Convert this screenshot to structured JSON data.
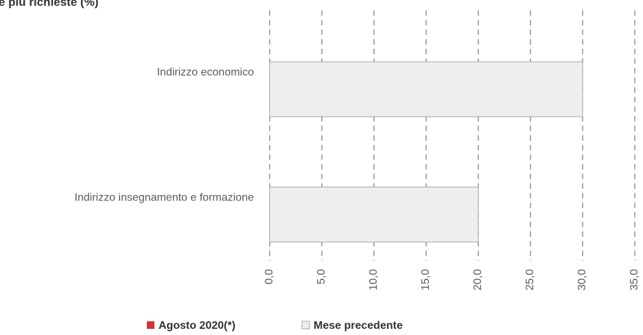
{
  "chart_data": {
    "type": "hbar",
    "title": "e più richieste (%)",
    "categories": [
      "Indirizzo economico",
      "Indirizzo insegnamento e formazione"
    ],
    "series": [
      {
        "name": "Agosto 2020(*)",
        "color": "#d13438",
        "values": [
          0,
          0
        ]
      },
      {
        "name": "Mese precedente",
        "color": "#eeeeee",
        "values": [
          30,
          20
        ]
      }
    ],
    "xlim": [
      0,
      35
    ],
    "xticks": [
      {
        "value": 0,
        "label": "0,0"
      },
      {
        "value": 5,
        "label": "5,0"
      },
      {
        "value": 10,
        "label": "10,0"
      },
      {
        "value": 15,
        "label": "15,0"
      },
      {
        "value": 20,
        "label": "20,0"
      },
      {
        "value": 25,
        "label": "25,0"
      },
      {
        "value": 30,
        "label": "30,0"
      },
      {
        "value": 35,
        "label": "35,0"
      }
    ],
    "grid": true,
    "legend": "bottom"
  }
}
